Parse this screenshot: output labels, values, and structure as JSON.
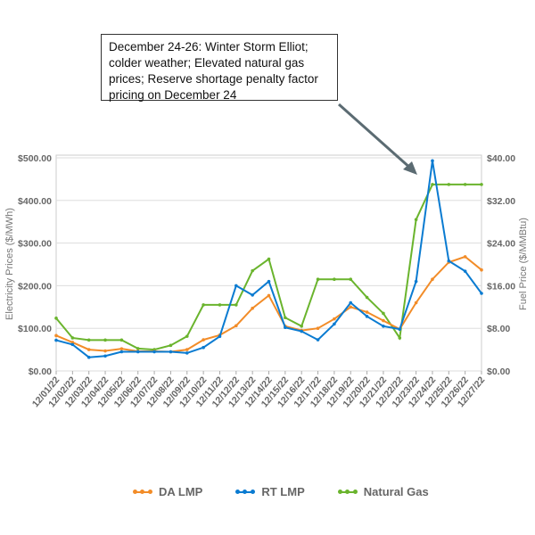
{
  "annotation": "December 24-26: Winter Storm Elliot; colder weather;  Elevated natural gas prices; Reserve shortage penalty factor pricing on December 24",
  "chart_data": {
    "type": "line",
    "categories": [
      "12/01/22",
      "12/02/22",
      "12/03/22",
      "12/04/22",
      "12/05/22",
      "12/06/22",
      "12/07/22",
      "12/08/22",
      "12/09/22",
      "12/10/22",
      "12/11/22",
      "12/12/22",
      "12/13/22",
      "12/14/22",
      "12/15/22",
      "12/16/22",
      "12/17/22",
      "12/18/22",
      "12/19/22",
      "12/20/22",
      "12/21/22",
      "12/22/22",
      "12/23/22",
      "12/24/22",
      "12/25/22",
      "12/26/22",
      "12/27/22"
    ],
    "series": [
      {
        "name": "DA LMP",
        "axis": "left",
        "color": "#F28C28",
        "values": [
          83,
          67,
          50,
          47,
          52,
          46,
          46,
          45,
          50,
          73,
          84,
          106,
          147,
          177,
          105,
          95,
          100,
          122,
          150,
          138,
          118,
          98,
          160,
          215,
          255,
          268,
          237
        ]
      },
      {
        "name": "RT LMP",
        "axis": "left",
        "color": "#0A7BD1",
        "values": [
          72,
          62,
          32,
          35,
          45,
          45,
          45,
          45,
          42,
          55,
          81,
          200,
          178,
          210,
          102,
          93,
          73,
          110,
          160,
          128,
          105,
          98,
          210,
          493,
          258,
          234,
          182
        ]
      },
      {
        "name": "Natural Gas",
        "axis": "right",
        "color": "#6AB42D",
        "values": [
          9.9,
          6.2,
          5.8,
          5.8,
          5.8,
          4.2,
          4.0,
          4.8,
          6.5,
          12.4,
          12.4,
          12.4,
          18.8,
          21.0,
          10.0,
          8.4,
          17.2,
          17.2,
          17.2,
          13.8,
          10.8,
          6.2,
          28.4,
          35.0,
          35.0,
          35.0,
          35.0
        ]
      }
    ],
    "ylabel": "Electricity Prices ($/MWh)",
    "y2label": "Fuel Price ($/MMBtu)",
    "ylim": [
      0,
      500
    ],
    "y2lim": [
      0,
      40
    ],
    "yticks": [
      "$0.00",
      "$100.00",
      "$200.00",
      "$300.00",
      "$400.00",
      "$500.00"
    ],
    "y2ticks": [
      "$0.00",
      "$8.00",
      "$16.00",
      "$24.00",
      "$32.00",
      "$40.00"
    ],
    "grid": true,
    "legend_position": "bottom"
  }
}
